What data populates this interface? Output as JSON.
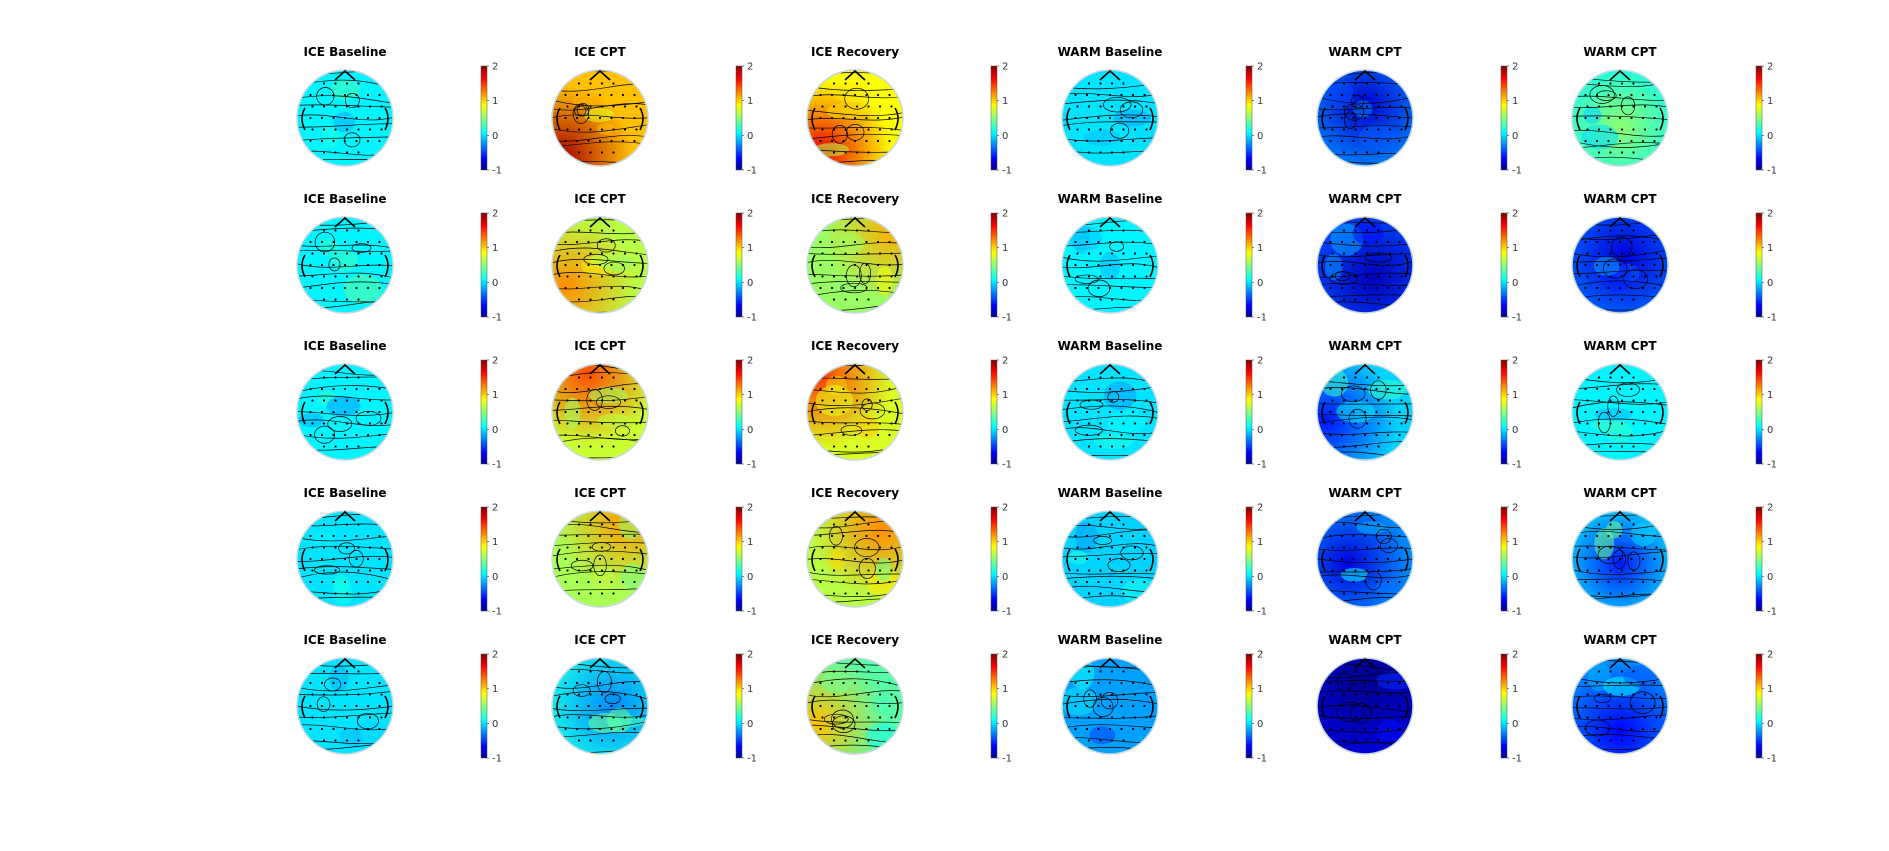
{
  "chart_data": {
    "type": "heatmap",
    "description_kind": "grid of EEG scalp topography maps with colorbars",
    "colormap": "jet",
    "colormap_stops": [
      "#00008f",
      "#0000ff",
      "#00ffff",
      "#ffff00",
      "#ff0000",
      "#800000"
    ],
    "clim": [
      -1,
      2
    ],
    "colorbar_ticks": [
      "2",
      "1",
      "0",
      "-1"
    ],
    "columns": [
      "ICE Baseline",
      "ICE CPT",
      "ICE Recovery",
      "WARM Baseline",
      "WARM CPT",
      "WARM CPT"
    ],
    "rows": 5,
    "mean_values": [
      [
        0.05,
        1.05,
        0.85,
        0.0,
        -0.25,
        0.1
      ],
      [
        0.05,
        0.65,
        0.55,
        0.05,
        -0.45,
        -0.35
      ],
      [
        0.05,
        0.7,
        0.75,
        0.0,
        -0.05,
        0.05
      ],
      [
        0.0,
        0.6,
        0.65,
        -0.05,
        -0.2,
        0.1
      ],
      [
        0.0,
        0.15,
        0.35,
        -0.2,
        -0.8,
        -0.25
      ]
    ],
    "hotspots": [
      [
        [
          0.0,
          0.0,
          0.0
        ],
        [
          0.6,
          -0.9,
          0.9
        ],
        [
          0.6,
          -0.8,
          0.8
        ],
        [
          0.0,
          0.0,
          0.0
        ],
        [
          -0.4,
          0.0,
          -0.3
        ],
        [
          0.3,
          0.0,
          0.2
        ]
      ],
      [
        [
          0.0,
          0.0,
          0.0
        ],
        [
          0.4,
          -0.8,
          0.5
        ],
        [
          0.4,
          0.9,
          -0.8
        ],
        [
          0.0,
          0.0,
          0.0
        ],
        [
          -0.3,
          0.2,
          0.3
        ],
        [
          -0.3,
          0.1,
          -0.2
        ]
      ],
      [
        [
          0.0,
          0.0,
          0.0
        ],
        [
          0.5,
          -0.3,
          -0.9
        ],
        [
          0.5,
          -0.8,
          -0.8
        ],
        [
          0.0,
          0.0,
          0.0
        ],
        [
          -0.4,
          -0.9,
          0.2
        ],
        [
          0.0,
          0.0,
          0.0
        ]
      ],
      [
        [
          0.0,
          0.0,
          0.0
        ],
        [
          0.4,
          0.6,
          -0.9
        ],
        [
          0.4,
          0.6,
          -0.7
        ],
        [
          0.0,
          0.0,
          0.0
        ],
        [
          -0.4,
          -0.4,
          0.1
        ],
        [
          -0.5,
          0.0,
          0.1
        ]
      ],
      [
        [
          0.0,
          0.0,
          0.0
        ],
        [
          -0.3,
          0.3,
          0.0
        ],
        [
          0.5,
          -0.9,
          0.4
        ],
        [
          0.0,
          0.0,
          0.0
        ],
        [
          -0.3,
          0.0,
          -0.6
        ],
        [
          -0.3,
          0.0,
          0.6
        ]
      ]
    ]
  }
}
